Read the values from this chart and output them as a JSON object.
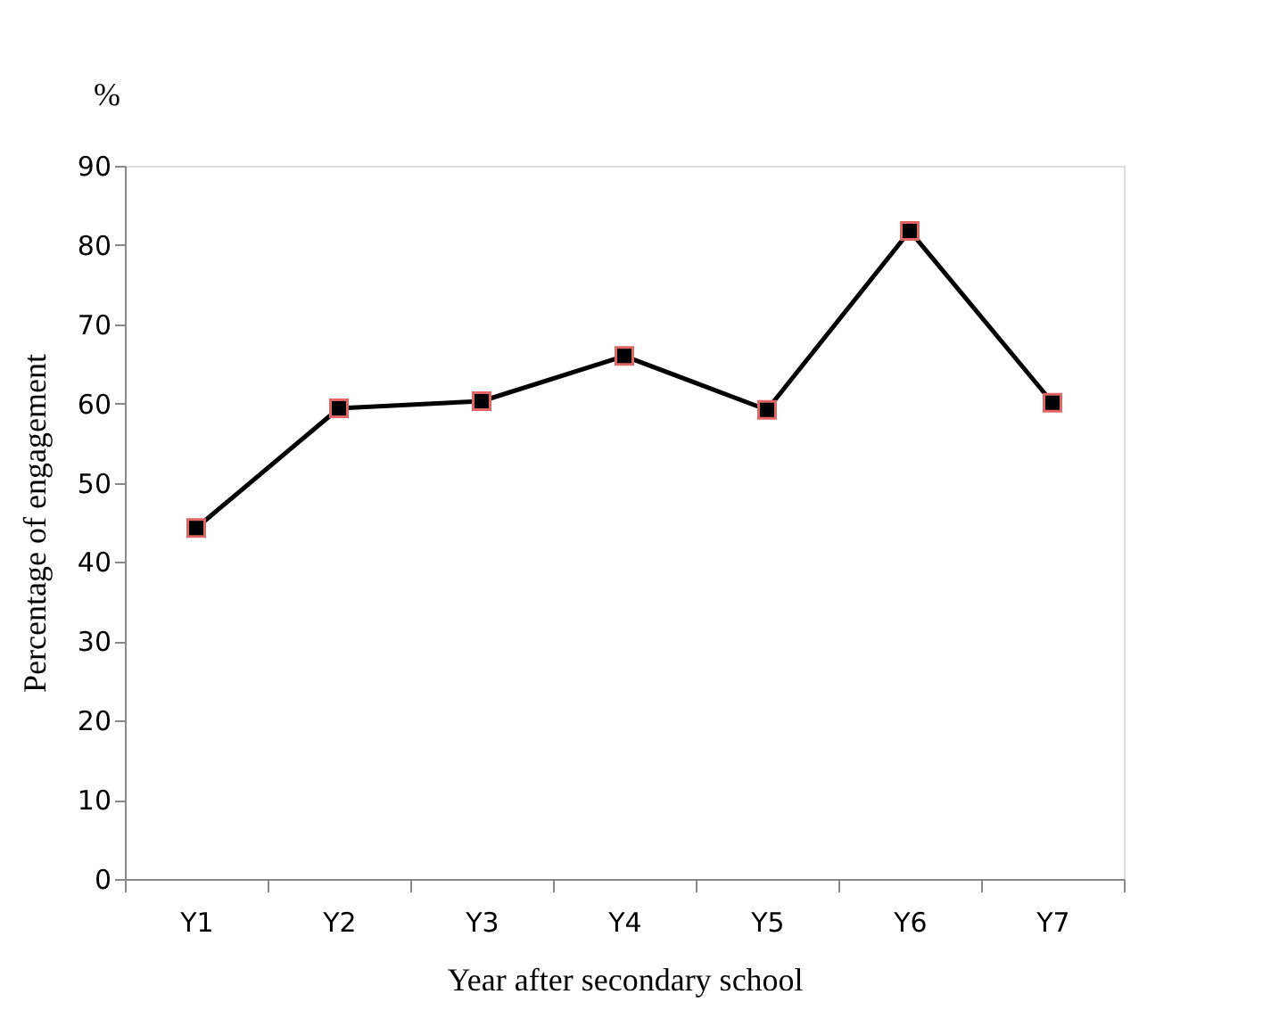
{
  "chart_data": {
    "type": "line",
    "xlabel": "Year after secondary school",
    "ylabel": "Percentage of engagement",
    "annotations": [
      "%"
    ],
    "categories": [
      "Y1",
      "Y2",
      "Y3",
      "Y4",
      "Y5",
      "Y6",
      "Y7"
    ],
    "series": [
      {
        "color": "#000000",
        "values": [
          44.3,
          59.4,
          60.3,
          66.0,
          59.2,
          81.8,
          60.1
        ]
      }
    ],
    "ylim": [
      0,
      90
    ],
    "yticks": [
      0,
      10,
      20,
      30,
      40,
      50,
      60,
      70,
      80,
      90
    ],
    "marker": "square",
    "line_style": "solid",
    "grid": false,
    "legend": false
  }
}
